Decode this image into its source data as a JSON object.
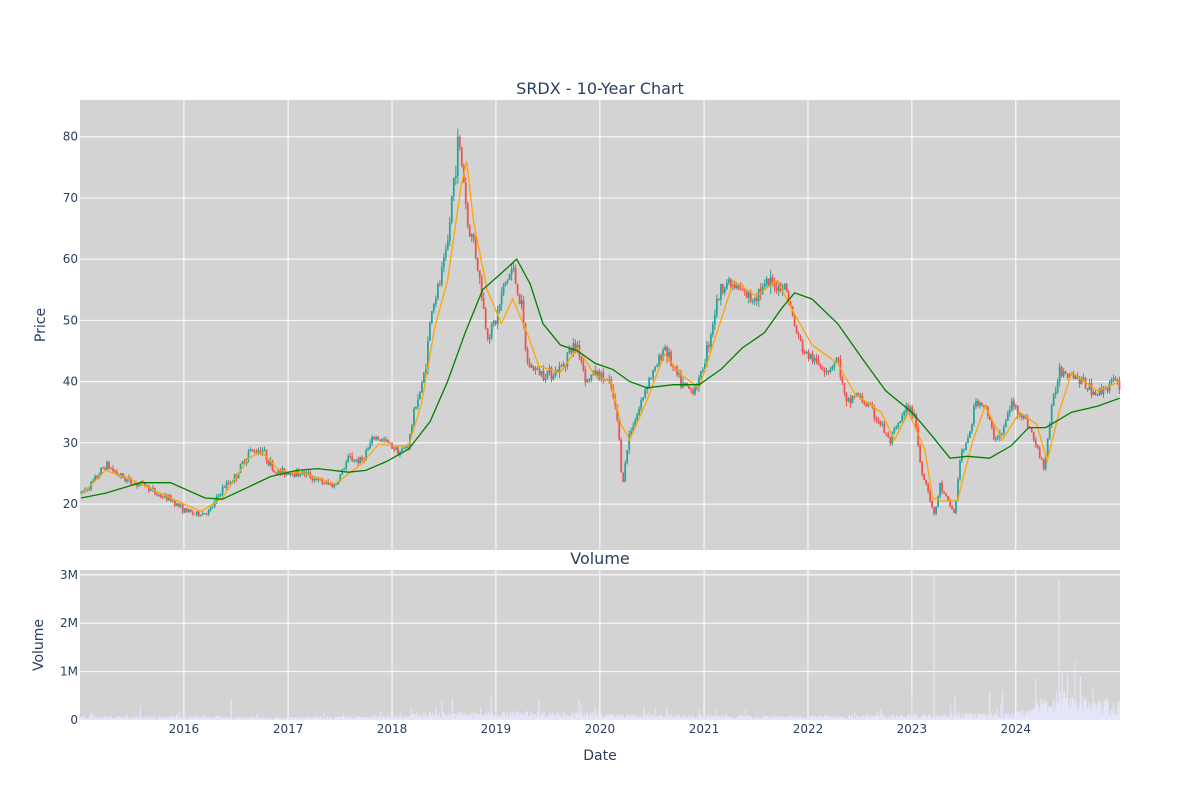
{
  "chart_data": [
    {
      "type": "candlestick",
      "title": "SRDX - 10-Year Chart",
      "ylabel": "Price",
      "ylim": [
        12.5,
        86
      ],
      "yticks": [
        20,
        30,
        40,
        50,
        60,
        70,
        80
      ],
      "xlim": [
        "2015-01-01",
        "2025-01-01"
      ],
      "x_tick_labels": [
        "2016",
        "2017",
        "2018",
        "2019",
        "2020",
        "2021",
        "2022",
        "2023",
        "2024"
      ],
      "grid": true,
      "background": "#d3d3d3",
      "colors": {
        "up": "#26a69a",
        "down": "#ef5350",
        "ma_short": "#ffa500",
        "ma_long": "#008000"
      },
      "close_path": [
        [
          "2015-01-05",
          21.8
        ],
        [
          "2015-02-15",
          23.5
        ],
        [
          "2015-04-01",
          26.5
        ],
        [
          "2015-05-15",
          24.8
        ],
        [
          "2015-07-01",
          23.5
        ],
        [
          "2015-08-15",
          23.2
        ],
        [
          "2015-10-01",
          21.5
        ],
        [
          "2015-11-15",
          20.8
        ],
        [
          "2016-01-01",
          19.0
        ],
        [
          "2016-02-15",
          18.3
        ],
        [
          "2016-04-01",
          18.8
        ],
        [
          "2016-05-15",
          22.5
        ],
        [
          "2016-07-01",
          24.5
        ],
        [
          "2016-08-15",
          28.5
        ],
        [
          "2016-10-01",
          29.0
        ],
        [
          "2016-11-15",
          25.2
        ],
        [
          "2017-01-01",
          25.2
        ],
        [
          "2017-03-01",
          25.0
        ],
        [
          "2017-05-01",
          23.5
        ],
        [
          "2017-06-15",
          23.0
        ],
        [
          "2017-08-01",
          27.5
        ],
        [
          "2017-09-15",
          27.0
        ],
        [
          "2017-11-01",
          31.0
        ],
        [
          "2017-12-15",
          30.0
        ],
        [
          "2018-02-01",
          28.5
        ],
        [
          "2018-03-01",
          30.0
        ],
        [
          "2018-03-25",
          36.5
        ],
        [
          "2018-04-15",
          39.0
        ],
        [
          "2018-05-01",
          43.5
        ],
        [
          "2018-05-20",
          52.0
        ],
        [
          "2018-06-15",
          55.5
        ],
        [
          "2018-07-15",
          62.0
        ],
        [
          "2018-08-01",
          71.0
        ],
        [
          "2018-08-22",
          79.5
        ],
        [
          "2018-09-10",
          73.0
        ],
        [
          "2018-09-25",
          65.0
        ],
        [
          "2018-10-15",
          63.0
        ],
        [
          "2018-11-01",
          58.0
        ],
        [
          "2018-12-01",
          47.5
        ],
        [
          "2019-01-01",
          50.0
        ],
        [
          "2019-02-01",
          56.0
        ],
        [
          "2019-03-01",
          58.5
        ],
        [
          "2019-04-01",
          52.0
        ],
        [
          "2019-04-20",
          43.0
        ],
        [
          "2019-06-01",
          41.5
        ],
        [
          "2019-07-15",
          41.5
        ],
        [
          "2019-08-15",
          42.0
        ],
        [
          "2019-09-15",
          45.0
        ],
        [
          "2019-10-15",
          46.0
        ],
        [
          "2019-11-15",
          40.0
        ],
        [
          "2019-12-15",
          41.5
        ],
        [
          "2020-01-15",
          40.5
        ],
        [
          "2020-02-10",
          39.0
        ],
        [
          "2020-03-05",
          33.0
        ],
        [
          "2020-03-20",
          23.0
        ],
        [
          "2020-04-15",
          32.0
        ],
        [
          "2020-05-15",
          35.0
        ],
        [
          "2020-06-15",
          40.0
        ],
        [
          "2020-07-15",
          42.0
        ],
        [
          "2020-08-15",
          46.0
        ],
        [
          "2020-09-15",
          42.0
        ],
        [
          "2020-10-15",
          39.5
        ],
        [
          "2020-11-15",
          38.5
        ],
        [
          "2020-12-15",
          40.0
        ],
        [
          "2021-01-15",
          46.0
        ],
        [
          "2021-02-15",
          53.0
        ],
        [
          "2021-03-15",
          56.5
        ],
        [
          "2021-05-01",
          55.0
        ],
        [
          "2021-06-15",
          53.5
        ],
        [
          "2021-07-15",
          55.0
        ],
        [
          "2021-09-01",
          56.0
        ],
        [
          "2021-10-15",
          55.5
        ],
        [
          "2021-11-15",
          49.0
        ],
        [
          "2021-12-15",
          45.0
        ],
        [
          "2022-02-01",
          43.0
        ],
        [
          "2022-03-15",
          42.0
        ],
        [
          "2022-04-15",
          44.0
        ],
        [
          "2022-05-15",
          36.0
        ],
        [
          "2022-06-15",
          38.0
        ],
        [
          "2022-08-01",
          36.0
        ],
        [
          "2022-09-15",
          33.0
        ],
        [
          "2022-10-15",
          30.0
        ],
        [
          "2022-11-15",
          33.0
        ],
        [
          "2022-12-15",
          35.5
        ],
        [
          "2023-01-10",
          35.0
        ],
        [
          "2023-02-01",
          26.0
        ],
        [
          "2023-03-01",
          22.0
        ],
        [
          "2023-03-20",
          18.0
        ],
        [
          "2023-04-10",
          23.0
        ],
        [
          "2023-05-10",
          20.0
        ],
        [
          "2023-06-01",
          18.5
        ],
        [
          "2023-06-20",
          28.0
        ],
        [
          "2023-07-15",
          30.0
        ],
        [
          "2023-08-15",
          37.0
        ],
        [
          "2023-09-15",
          36.0
        ],
        [
          "2023-10-15",
          31.0
        ],
        [
          "2023-11-15",
          31.5
        ],
        [
          "2023-12-15",
          36.5
        ],
        [
          "2024-01-15",
          35.0
        ],
        [
          "2024-02-15",
          33.0
        ],
        [
          "2024-03-15",
          29.0
        ],
        [
          "2024-04-10",
          26.0
        ],
        [
          "2024-05-01",
          34.0
        ],
        [
          "2024-06-01",
          42.0
        ],
        [
          "2024-07-15",
          41.5
        ],
        [
          "2024-09-01",
          39.5
        ],
        [
          "2024-10-15",
          38.0
        ],
        [
          "2024-12-01",
          40.0
        ],
        [
          "2024-12-31",
          39.5
        ]
      ],
      "ma_short_path": [
        [
          "2015-01-05",
          21.5
        ],
        [
          "2015-04-01",
          25.5
        ],
        [
          "2015-07-01",
          24.0
        ],
        [
          "2015-10-01",
          22.0
        ],
        [
          "2016-01-01",
          20.0
        ],
        [
          "2016-03-01",
          18.8
        ],
        [
          "2016-05-15",
          21.0
        ],
        [
          "2016-08-15",
          27.5
        ],
        [
          "2016-10-01",
          28.5
        ],
        [
          "2016-12-01",
          25.5
        ],
        [
          "2017-03-01",
          25.0
        ],
        [
          "2017-06-15",
          23.3
        ],
        [
          "2017-09-15",
          26.5
        ],
        [
          "2017-11-15",
          29.8
        ],
        [
          "2018-01-15",
          29.5
        ],
        [
          "2018-03-01",
          29.5
        ],
        [
          "2018-04-15",
          36.5
        ],
        [
          "2018-06-01",
          49.0
        ],
        [
          "2018-07-15",
          56.5
        ],
        [
          "2018-09-01",
          72.0
        ],
        [
          "2018-09-20",
          76.0
        ],
        [
          "2018-10-15",
          66.0
        ],
        [
          "2018-12-01",
          55.0
        ],
        [
          "2019-01-20",
          49.5
        ],
        [
          "2019-03-01",
          53.5
        ],
        [
          "2019-04-20",
          48.0
        ],
        [
          "2019-06-01",
          42.5
        ],
        [
          "2019-08-15",
          41.5
        ],
        [
          "2019-10-15",
          45.5
        ],
        [
          "2019-12-15",
          41.0
        ],
        [
          "2020-02-10",
          40.0
        ],
        [
          "2020-03-15",
          33.0
        ],
        [
          "2020-04-15",
          30.5
        ],
        [
          "2020-06-15",
          37.0
        ],
        [
          "2020-08-15",
          44.5
        ],
        [
          "2020-10-15",
          41.0
        ],
        [
          "2020-12-15",
          39.0
        ],
        [
          "2021-02-15",
          48.0
        ],
        [
          "2021-04-15",
          56.5
        ],
        [
          "2021-07-01",
          54.0
        ],
        [
          "2021-09-15",
          56.5
        ],
        [
          "2021-11-15",
          51.0
        ],
        [
          "2022-01-15",
          46.0
        ],
        [
          "2022-04-15",
          43.0
        ],
        [
          "2022-06-15",
          38.0
        ],
        [
          "2022-09-15",
          35.0
        ],
        [
          "2022-11-01",
          30.5
        ],
        [
          "2022-12-20",
          35.0
        ],
        [
          "2023-02-15",
          29.0
        ],
        [
          "2023-03-15",
          21.0
        ],
        [
          "2023-04-15",
          20.5
        ],
        [
          "2023-06-10",
          20.5
        ],
        [
          "2023-08-01",
          30.0
        ],
        [
          "2023-09-15",
          36.0
        ],
        [
          "2023-11-15",
          30.5
        ],
        [
          "2024-01-15",
          35.0
        ],
        [
          "2024-03-15",
          33.0
        ],
        [
          "2024-04-20",
          27.0
        ],
        [
          "2024-06-01",
          35.0
        ],
        [
          "2024-07-15",
          41.5
        ],
        [
          "2024-10-15",
          38.5
        ],
        [
          "2024-12-31",
          40.0
        ]
      ],
      "ma_long_path": [
        [
          "2015-01-05",
          21.0
        ],
        [
          "2015-04-01",
          21.8
        ],
        [
          "2015-08-01",
          23.5
        ],
        [
          "2015-11-15",
          23.5
        ],
        [
          "2016-03-15",
          21.0
        ],
        [
          "2016-05-15",
          20.8
        ],
        [
          "2016-08-01",
          22.5
        ],
        [
          "2016-11-01",
          24.5
        ],
        [
          "2017-02-01",
          25.5
        ],
        [
          "2017-04-15",
          25.8
        ],
        [
          "2017-08-01",
          25.2
        ],
        [
          "2017-10-01",
          25.5
        ],
        [
          "2017-12-15",
          27.0
        ],
        [
          "2018-03-01",
          29.0
        ],
        [
          "2018-05-15",
          33.5
        ],
        [
          "2018-07-15",
          40.0
        ],
        [
          "2018-09-15",
          48.0
        ],
        [
          "2018-11-15",
          55.0
        ],
        [
          "2019-01-15",
          57.5
        ],
        [
          "2019-03-15",
          60.0
        ],
        [
          "2019-05-01",
          56.0
        ],
        [
          "2019-06-15",
          49.5
        ],
        [
          "2019-08-15",
          46.0
        ],
        [
          "2019-10-15",
          45.0
        ],
        [
          "2019-12-15",
          43.0
        ],
        [
          "2020-02-15",
          42.0
        ],
        [
          "2020-04-15",
          40.0
        ],
        [
          "2020-06-15",
          39.0
        ],
        [
          "2020-09-15",
          39.5
        ],
        [
          "2020-12-15",
          39.5
        ],
        [
          "2021-03-01",
          42.0
        ],
        [
          "2021-05-15",
          45.5
        ],
        [
          "2021-08-01",
          48.0
        ],
        [
          "2021-10-01",
          52.0
        ],
        [
          "2021-11-15",
          54.5
        ],
        [
          "2022-01-15",
          53.5
        ],
        [
          "2022-04-15",
          49.5
        ],
        [
          "2022-07-15",
          43.5
        ],
        [
          "2022-10-01",
          38.5
        ],
        [
          "2023-01-01",
          35.0
        ],
        [
          "2023-03-15",
          31.0
        ],
        [
          "2023-05-15",
          27.5
        ],
        [
          "2023-07-15",
          27.8
        ],
        [
          "2023-10-01",
          27.5
        ],
        [
          "2023-12-15",
          29.5
        ],
        [
          "2024-02-15",
          32.5
        ],
        [
          "2024-04-15",
          32.5
        ],
        [
          "2024-07-15",
          35.0
        ],
        [
          "2024-10-15",
          36.0
        ],
        [
          "2024-12-31",
          37.3
        ]
      ],
      "range_extremes": {
        "max": 82,
        "min": 16
      }
    },
    {
      "type": "bar",
      "title": "Volume",
      "ylabel": "Volume",
      "xlabel": "Date",
      "ylim": [
        0,
        3100000
      ],
      "yticks": [
        0,
        1000000,
        2000000,
        3000000
      ],
      "ytick_labels": [
        "0",
        "1M",
        "2M",
        "3M"
      ],
      "x_tick_labels": [
        "2016",
        "2017",
        "2018",
        "2019",
        "2020",
        "2021",
        "2022",
        "2023",
        "2024"
      ],
      "grid": true,
      "background": "#d3d3d3",
      "bar_color": "#e6e6fa",
      "baseline_path": [
        [
          "2015-01-01",
          60000
        ],
        [
          "2016-01-01",
          55000
        ],
        [
          "2017-01-01",
          45000
        ],
        [
          "2018-01-01",
          60000
        ],
        [
          "2018-06-01",
          120000
        ],
        [
          "2019-01-01",
          110000
        ],
        [
          "2019-06-01",
          130000
        ],
        [
          "2020-01-01",
          90000
        ],
        [
          "2021-01-01",
          70000
        ],
        [
          "2022-01-01",
          60000
        ],
        [
          "2023-01-01",
          80000
        ],
        [
          "2023-06-01",
          100000
        ],
        [
          "2024-01-01",
          100000
        ],
        [
          "2024-06-15",
          450000
        ],
        [
          "2024-09-01",
          300000
        ],
        [
          "2024-12-31",
          250000
        ]
      ],
      "spikes": [
        [
          "2015-08-01",
          300000
        ],
        [
          "2016-06-15",
          420000
        ],
        [
          "2018-08-01",
          450000
        ],
        [
          "2018-12-15",
          480000
        ],
        [
          "2019-06-01",
          420000
        ],
        [
          "2019-10-20",
          420000
        ],
        [
          "2023-01-01",
          560000
        ],
        [
          "2023-03-20",
          3000000
        ],
        [
          "2023-06-01",
          480000
        ],
        [
          "2023-10-01",
          580000
        ],
        [
          "2023-11-15",
          620000
        ],
        [
          "2024-06-01",
          2900000
        ],
        [
          "2024-07-01",
          950000
        ],
        [
          "2024-08-15",
          900000
        ]
      ]
    }
  ]
}
